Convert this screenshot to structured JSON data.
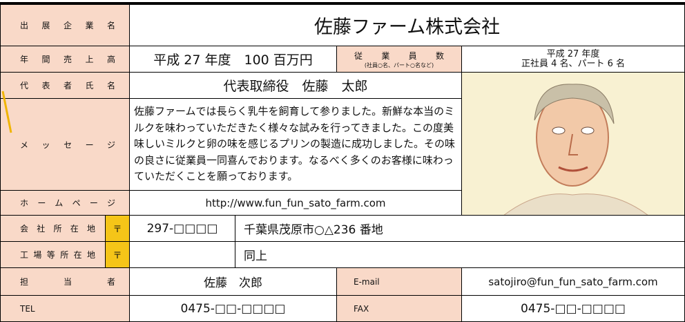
{
  "form": {
    "company_label": "出展企業名",
    "company_name": "佐藤ファーム株式会社",
    "sales_label": "年間売上高",
    "sales": "平成 27 年度　100 百万円",
    "employees_label": "従業員数",
    "employees_note": "(社員○名、パート○名など)",
    "employees_year": "平成 27 年度",
    "employees": "正社員 4 名、パート 6 名",
    "representative_label": "代表者氏名",
    "representative": "代表取締役　佐藤　太郎",
    "message_label": "メッセージ",
    "message": "佐藤ファームでは長らく乳牛を飼育して参りました。新鮮な本当のミルクを味わっていただきたく様々な試みを行ってきました。この度美味しいミルクと卵の味を感じるプリンの製造に成功しました。その味の良さに従業員一同喜んでおります。なるべく多くのお客様に味わっていただくことを願っております。",
    "homepage_label": "ホームページ",
    "homepage": "http://www.fun_fun_sato_farm.com",
    "address_label": "会社所在地",
    "postal_mark": "〒",
    "postal_code": "297-□□□□",
    "address": "千葉県茂原市○△236 番地",
    "factory_label": "工場等所在地",
    "factory_postal_mark": "〒",
    "factory_address": "同上",
    "contact_label": "担当者",
    "contact": "佐藤　次郎",
    "email_label": "E-mail",
    "email": "satojiro@fun_fun_sato_farm.com",
    "tel_label": "TEL",
    "tel": "0475-□□-□□□□",
    "fax_label": "FAX",
    "fax": "0475-□□-□□□□"
  }
}
